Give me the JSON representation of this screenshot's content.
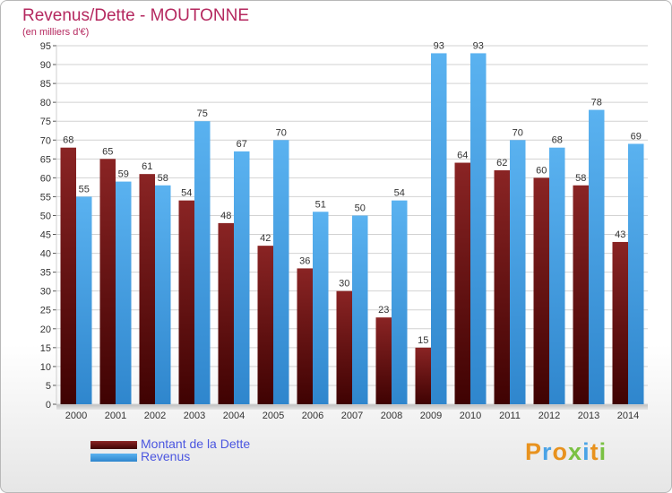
{
  "title": "Revenus/Dette - MOUTONNE",
  "subtitle": "(en milliers d'€)",
  "chart_data": {
    "type": "bar",
    "title": "Revenus/Dette - MOUTONNE",
    "subtitle": "(en milliers d'€)",
    "categories": [
      "2000",
      "2001",
      "2002",
      "2003",
      "2004",
      "2005",
      "2006",
      "2007",
      "2008",
      "2009",
      "2010",
      "2011",
      "2012",
      "2013",
      "2014"
    ],
    "series": [
      {
        "name": "Montant de la Dette",
        "color": "#7a1a1a",
        "values": [
          68,
          65,
          61,
          54,
          48,
          42,
          36,
          30,
          23,
          15,
          64,
          62,
          60,
          58,
          43
        ]
      },
      {
        "name": "Revenus",
        "color": "#4aa3e6",
        "values": [
          55,
          59,
          58,
          75,
          67,
          70,
          51,
          50,
          54,
          93,
          93,
          70,
          68,
          78,
          69
        ]
      }
    ],
    "ylim": [
      0,
      95
    ],
    "yticks": [
      0,
      5,
      10,
      15,
      20,
      25,
      30,
      35,
      40,
      45,
      50,
      55,
      60,
      65,
      70,
      75,
      80,
      85,
      90,
      95
    ],
    "grid": true,
    "legend_position": "bottom-left"
  },
  "legend": [
    {
      "label": "Montant de la Dette",
      "color": "#7a1a1a"
    },
    {
      "label": "Revenus",
      "color": "#4aa3e6"
    }
  ],
  "logo": "Proxiti"
}
